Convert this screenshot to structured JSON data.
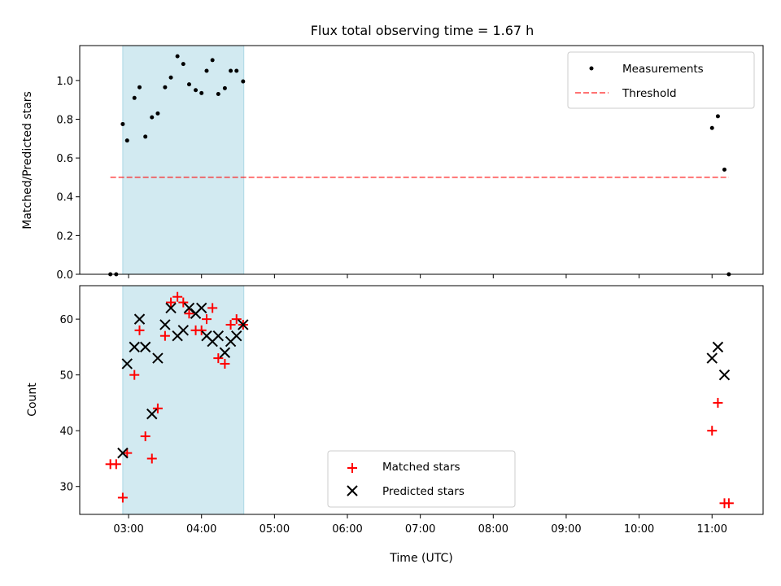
{
  "title": "Flux total observing time = 1.67 h",
  "colors": {
    "shade": "#add8e6",
    "measurements": "#000000",
    "threshold": "#ff0000",
    "matched": "#ff0000",
    "predicted": "#000000"
  },
  "chart_data": [
    {
      "type": "scatter",
      "ylabel": "Matched/Predicted stars",
      "ylim": [
        0,
        1.18
      ],
      "xlim": [
        2.33,
        11.7
      ],
      "yticks": [
        "0.0",
        "0.2",
        "0.4",
        "0.6",
        "0.8",
        "1.0"
      ],
      "shaded_span": [
        2.92,
        4.58
      ],
      "legend": {
        "placement": "upper right",
        "entries": [
          "Measurements",
          "Threshold"
        ]
      },
      "series": [
        {
          "name": "Measurements",
          "marker": "dot",
          "x": [
            2.75,
            2.83,
            2.92,
            2.98,
            3.08,
            3.15,
            3.23,
            3.32,
            3.4,
            3.5,
            3.58,
            3.67,
            3.75,
            3.83,
            3.92,
            4.0,
            4.07,
            4.15,
            4.23,
            4.32,
            4.4,
            4.48,
            4.57,
            11.0,
            11.08,
            11.17,
            11.23
          ],
          "y": [
            0.0,
            0.0,
            0.775,
            0.69,
            0.91,
            0.965,
            0.71,
            0.81,
            0.83,
            0.965,
            1.015,
            1.125,
            1.085,
            0.98,
            0.95,
            0.935,
            1.05,
            1.105,
            0.93,
            0.96,
            1.05,
            1.05,
            0.995,
            0.755,
            0.815,
            0.54,
            0.0
          ]
        },
        {
          "name": "Threshold",
          "marker": "dashed-line",
          "x": [
            2.75,
            11.23
          ],
          "y": [
            0.5,
            0.5
          ]
        }
      ]
    },
    {
      "type": "scatter",
      "ylabel": "Count",
      "xlabel": "Time (UTC)",
      "ylim": [
        25,
        66
      ],
      "xlim": [
        2.33,
        11.7
      ],
      "yticks": [
        "30",
        "40",
        "50",
        "60"
      ],
      "xticks": [
        {
          "v": 3,
          "label": "03:00"
        },
        {
          "v": 4,
          "label": "04:00"
        },
        {
          "v": 5,
          "label": "05:00"
        },
        {
          "v": 6,
          "label": "06:00"
        },
        {
          "v": 7,
          "label": "07:00"
        },
        {
          "v": 8,
          "label": "08:00"
        },
        {
          "v": 9,
          "label": "09:00"
        },
        {
          "v": 10,
          "label": "10:00"
        },
        {
          "v": 11,
          "label": "11:00"
        }
      ],
      "shaded_span": [
        2.92,
        4.58
      ],
      "legend": {
        "placement": "lower center",
        "entries": [
          "Matched stars",
          "Predicted stars"
        ]
      },
      "series": [
        {
          "name": "Matched stars",
          "marker": "plus",
          "x": [
            2.75,
            2.83,
            2.92,
            2.98,
            3.08,
            3.15,
            3.23,
            3.32,
            3.4,
            3.5,
            3.58,
            3.67,
            3.75,
            3.83,
            3.92,
            4.0,
            4.07,
            4.15,
            4.23,
            4.32,
            4.4,
            4.48,
            4.57,
            11.0,
            11.08,
            11.17,
            11.23
          ],
          "y": [
            34,
            34,
            28,
            36,
            50,
            58,
            39,
            35,
            44,
            57,
            63,
            64,
            63,
            61,
            58,
            58,
            60,
            62,
            53,
            52,
            59,
            60,
            59,
            40,
            45,
            27,
            27
          ]
        },
        {
          "name": "Predicted stars",
          "marker": "x",
          "x": [
            2.92,
            2.98,
            3.08,
            3.15,
            3.23,
            3.32,
            3.4,
            3.5,
            3.58,
            3.67,
            3.75,
            3.83,
            3.92,
            4.0,
            4.07,
            4.15,
            4.23,
            4.32,
            4.4,
            4.48,
            4.57,
            11.0,
            11.08,
            11.17
          ],
          "y": [
            36,
            52,
            55,
            60,
            55,
            43,
            53,
            59,
            62,
            57,
            58,
            62,
            61,
            62,
            57,
            56,
            57,
            54,
            56,
            57,
            59,
            53,
            55,
            50
          ]
        }
      ]
    }
  ]
}
